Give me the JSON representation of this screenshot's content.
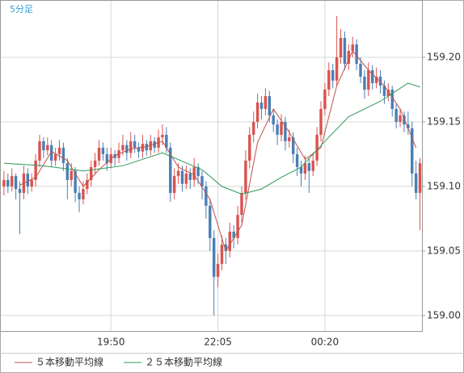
{
  "chart_data": {
    "type": "candlestick",
    "title": "5分足",
    "up_color": "#d9534f",
    "down_color": "#4a7fb5",
    "ohlc": [
      [
        159.1,
        159.112,
        159.093,
        159.105
      ],
      [
        159.105,
        159.11,
        159.095,
        159.1
      ],
      [
        159.1,
        159.114,
        159.096,
        159.108
      ],
      [
        159.108,
        159.11,
        159.09,
        159.098
      ],
      [
        159.098,
        159.104,
        159.063,
        159.095
      ],
      [
        159.095,
        159.116,
        159.09,
        159.11
      ],
      [
        159.11,
        159.114,
        159.094,
        159.1
      ],
      [
        159.1,
        159.11,
        159.096,
        159.105
      ],
      [
        159.105,
        159.125,
        159.1,
        159.12
      ],
      [
        159.12,
        159.14,
        159.115,
        159.135
      ],
      [
        159.135,
        159.138,
        159.122,
        159.128
      ],
      [
        159.128,
        159.138,
        159.124,
        159.132
      ],
      [
        159.132,
        159.136,
        159.115,
        159.12
      ],
      [
        159.12,
        159.13,
        159.116,
        159.125
      ],
      [
        159.125,
        159.136,
        159.12,
        159.13
      ],
      [
        159.13,
        159.134,
        159.112,
        159.118
      ],
      [
        159.118,
        159.122,
        159.09,
        159.105
      ],
      [
        159.105,
        159.118,
        159.1,
        159.112
      ],
      [
        159.112,
        159.115,
        159.088,
        159.095
      ],
      [
        159.095,
        159.1,
        159.08,
        159.09
      ],
      [
        159.09,
        159.104,
        159.086,
        159.098
      ],
      [
        159.098,
        159.11,
        159.094,
        159.105
      ],
      [
        159.105,
        159.12,
        159.1,
        159.115
      ],
      [
        159.115,
        159.126,
        159.11,
        159.12
      ],
      [
        159.12,
        159.136,
        159.116,
        159.13
      ],
      [
        159.13,
        159.134,
        159.12,
        159.125
      ],
      [
        159.125,
        159.13,
        159.112,
        159.118
      ],
      [
        159.118,
        159.13,
        159.114,
        159.125
      ],
      [
        159.125,
        159.128,
        159.116,
        159.122
      ],
      [
        159.122,
        159.134,
        159.118,
        159.128
      ],
      [
        159.128,
        159.14,
        159.124,
        159.132
      ],
      [
        159.132,
        159.136,
        159.12,
        159.126
      ],
      [
        159.126,
        159.142,
        159.122,
        159.135
      ],
      [
        159.135,
        159.14,
        159.126,
        159.13
      ],
      [
        159.13,
        159.134,
        159.122,
        159.127
      ],
      [
        159.127,
        159.14,
        159.122,
        159.133
      ],
      [
        159.133,
        159.136,
        159.124,
        159.128
      ],
      [
        159.128,
        159.14,
        159.124,
        159.135
      ],
      [
        159.135,
        159.138,
        159.126,
        159.13
      ],
      [
        159.13,
        159.144,
        159.126,
        159.138
      ],
      [
        159.138,
        159.148,
        159.132,
        159.14
      ],
      [
        159.14,
        159.146,
        159.126,
        159.13
      ],
      [
        159.13,
        159.134,
        159.088,
        159.095
      ],
      [
        159.095,
        159.114,
        159.09,
        159.108
      ],
      [
        159.108,
        159.118,
        159.102,
        159.112
      ],
      [
        159.112,
        159.116,
        159.096,
        159.102
      ],
      [
        159.102,
        159.116,
        159.098,
        159.11
      ],
      [
        159.11,
        159.114,
        159.098,
        159.105
      ],
      [
        159.105,
        159.122,
        159.1,
        159.115
      ],
      [
        159.115,
        159.118,
        159.102,
        159.108
      ],
      [
        159.108,
        159.112,
        159.09,
        159.1
      ],
      [
        159.1,
        159.104,
        159.075,
        159.085
      ],
      [
        159.085,
        159.09,
        159.05,
        159.06
      ],
      [
        159.06,
        159.066,
        159.0,
        159.03
      ],
      [
        159.03,
        159.048,
        159.022,
        159.04
      ],
      [
        159.04,
        159.062,
        159.035,
        159.055
      ],
      [
        159.055,
        159.06,
        159.04,
        159.05
      ],
      [
        159.05,
        159.072,
        159.045,
        159.065
      ],
      [
        159.065,
        159.07,
        159.052,
        159.06
      ],
      [
        159.06,
        159.085,
        159.055,
        159.078
      ],
      [
        159.078,
        159.1,
        159.072,
        159.095
      ],
      [
        159.095,
        159.128,
        159.09,
        159.12
      ],
      [
        159.12,
        159.146,
        159.114,
        159.14
      ],
      [
        159.14,
        159.158,
        159.134,
        159.15
      ],
      [
        159.15,
        159.172,
        159.145,
        159.165
      ],
      [
        159.165,
        159.17,
        159.152,
        159.16
      ],
      [
        159.16,
        159.176,
        159.155,
        159.17
      ],
      [
        159.17,
        159.174,
        159.15,
        159.155
      ],
      [
        159.155,
        159.16,
        159.142,
        159.148
      ],
      [
        159.148,
        159.152,
        159.132,
        159.14
      ],
      [
        159.14,
        159.156,
        159.135,
        159.15
      ],
      [
        159.15,
        159.154,
        159.128,
        159.135
      ],
      [
        159.135,
        159.144,
        159.13,
        159.138
      ],
      [
        159.138,
        159.142,
        159.118,
        159.125
      ],
      [
        159.125,
        159.13,
        159.108,
        159.115
      ],
      [
        159.115,
        159.12,
        159.1,
        159.11
      ],
      [
        159.11,
        159.124,
        159.105,
        159.118
      ],
      [
        159.118,
        159.122,
        159.095,
        159.112
      ],
      [
        159.112,
        159.126,
        159.108,
        159.12
      ],
      [
        159.12,
        159.146,
        159.116,
        159.14
      ],
      [
        159.14,
        159.166,
        159.135,
        159.16
      ],
      [
        159.16,
        159.18,
        159.155,
        159.175
      ],
      [
        159.175,
        159.196,
        159.17,
        159.19
      ],
      [
        159.19,
        159.195,
        159.176,
        159.182
      ],
      [
        159.182,
        159.232,
        159.178,
        159.2
      ],
      [
        159.2,
        159.222,
        159.195,
        159.215
      ],
      [
        159.215,
        159.22,
        159.19,
        159.195
      ],
      [
        159.195,
        159.21,
        159.19,
        159.205
      ],
      [
        159.205,
        159.216,
        159.2,
        159.21
      ],
      [
        159.21,
        159.214,
        159.19,
        159.195
      ],
      [
        159.195,
        159.2,
        159.18,
        159.185
      ],
      [
        159.185,
        159.19,
        159.168,
        159.175
      ],
      [
        159.175,
        159.196,
        159.17,
        159.19
      ],
      [
        159.19,
        159.194,
        159.175,
        159.18
      ],
      [
        159.18,
        159.192,
        159.176,
        159.185
      ],
      [
        159.185,
        159.19,
        159.172,
        159.178
      ],
      [
        159.178,
        159.182,
        159.164,
        159.17
      ],
      [
        159.17,
        159.18,
        159.166,
        159.175
      ],
      [
        159.175,
        159.178,
        159.154,
        159.16
      ],
      [
        159.16,
        159.164,
        159.145,
        159.15
      ],
      [
        159.15,
        159.16,
        159.146,
        159.155
      ],
      [
        159.155,
        159.158,
        159.142,
        159.148
      ],
      [
        159.148,
        159.158,
        159.14,
        159.145
      ],
      [
        159.145,
        159.15,
        159.1,
        159.11
      ],
      [
        159.11,
        159.12,
        159.09,
        159.095
      ],
      [
        159.095,
        159.122,
        159.066,
        159.118
      ]
    ],
    "series": [
      {
        "name": "５本移動平均線",
        "color": "#c0504d",
        "x": [
          4,
          8,
          12,
          16,
          20,
          24,
          28,
          32,
          36,
          40,
          44,
          48,
          52,
          56,
          60,
          64,
          68,
          72,
          76,
          80,
          84,
          88,
          92,
          96,
          100,
          104
        ],
        "values": [
          159.101,
          159.107,
          159.127,
          159.12,
          159.1,
          159.113,
          159.124,
          159.129,
          159.131,
          159.135,
          159.115,
          159.109,
          159.09,
          159.05,
          159.07,
          159.134,
          159.16,
          159.142,
          159.121,
          159.13,
          159.178,
          159.205,
          159.19,
          159.178,
          159.16,
          159.13
        ]
      },
      {
        "name": "２５本移動平均線",
        "color": "#2e9a5a",
        "x": [
          0,
          10,
          20,
          30,
          40,
          50,
          55,
          60,
          65,
          70,
          75,
          81,
          87,
          95,
          102,
          105
        ],
        "values": [
          159.118,
          159.116,
          159.112,
          159.116,
          159.126,
          159.113,
          159.1,
          159.094,
          159.098,
          159.107,
          159.115,
          159.135,
          159.154,
          159.166,
          159.18,
          159.177
        ]
      }
    ],
    "xlim": [
      -1,
      105.5
    ],
    "xticks": [
      {
        "value": 27,
        "label": "19:50"
      },
      {
        "value": 54,
        "label": "22:05"
      },
      {
        "value": 81,
        "label": "00:20"
      }
    ],
    "ylim": [
      158.988,
      159.2444
    ],
    "yticks": [
      {
        "value": 159,
        "label": "159.00"
      },
      159.05,
      {
        "value": 159.1,
        "label": "159.10"
      },
      159.15,
      {
        "value": 159.2,
        "label": "159.20"
      }
    ],
    "grid": true
  }
}
